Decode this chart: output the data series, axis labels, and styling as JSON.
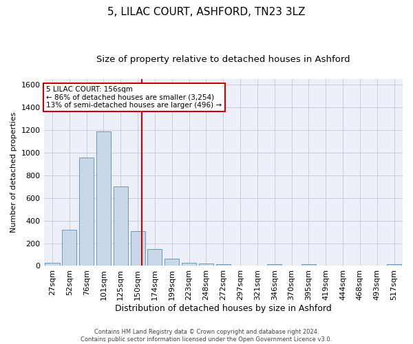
{
  "title": "5, LILAC COURT, ASHFORD, TN23 3LZ",
  "subtitle": "Size of property relative to detached houses in Ashford",
  "xlabel": "Distribution of detached houses by size in Ashford",
  "ylabel": "Number of detached properties",
  "categories": [
    "27sqm",
    "52sqm",
    "76sqm",
    "101sqm",
    "125sqm",
    "150sqm",
    "174sqm",
    "199sqm",
    "223sqm",
    "248sqm",
    "272sqm",
    "297sqm",
    "321sqm",
    "346sqm",
    "370sqm",
    "395sqm",
    "419sqm",
    "444sqm",
    "468sqm",
    "493sqm",
    "517sqm"
  ],
  "values": [
    30,
    320,
    960,
    1190,
    700,
    305,
    150,
    65,
    30,
    20,
    15,
    5,
    0,
    12,
    0,
    12,
    0,
    0,
    0,
    0,
    12
  ],
  "bar_color": "#c8d8e8",
  "bar_edge_color": "#5b8db0",
  "grid_color": "#c8cce0",
  "background_color": "#eceef8",
  "annotation_line1": "5 LILAC COURT: 156sqm",
  "annotation_line2": "← 86% of detached houses are smaller (3,254)",
  "annotation_line3": "13% of semi-detached houses are larger (496) →",
  "annotation_box_color": "#ffffff",
  "annotation_box_edge": "#cc0000",
  "vline_x": 5.24,
  "vline_color": "#cc0000",
  "ylim": [
    0,
    1650
  ],
  "yticks": [
    0,
    200,
    400,
    600,
    800,
    1000,
    1200,
    1400,
    1600
  ],
  "footer": "Contains HM Land Registry data © Crown copyright and database right 2024.\nContains public sector information licensed under the Open Government Licence v3.0.",
  "title_fontsize": 11,
  "subtitle_fontsize": 9.5,
  "ylabel_fontsize": 8,
  "xlabel_fontsize": 9,
  "tick_fontsize": 8,
  "annotation_fontsize": 7.5,
  "footer_fontsize": 6
}
